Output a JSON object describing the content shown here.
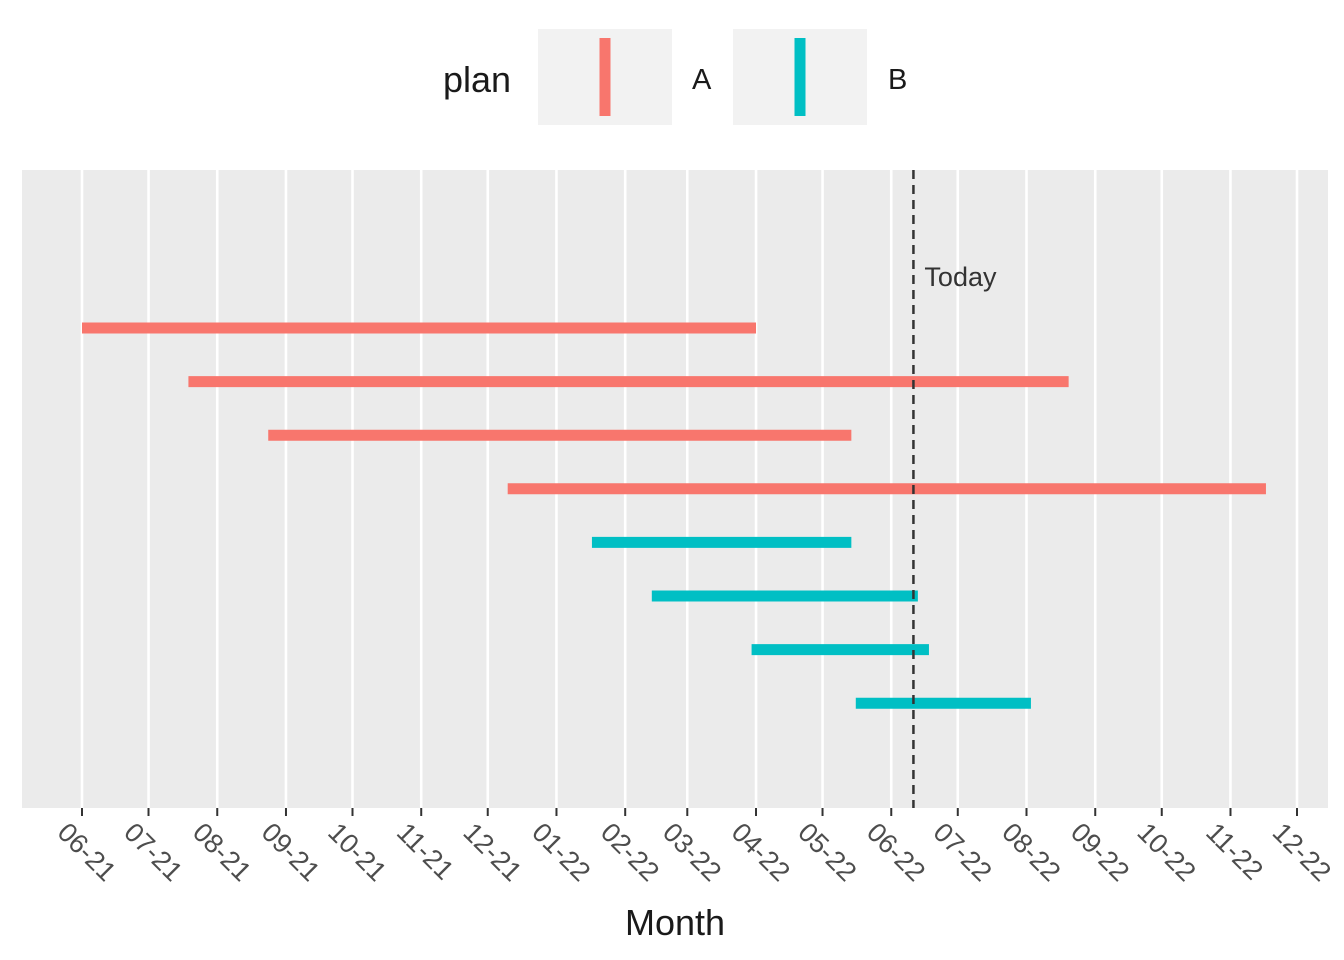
{
  "chart_data": {
    "type": "gantt",
    "xlabel": "Month",
    "x_ticks": [
      "06-21",
      "07-21",
      "08-21",
      "09-21",
      "10-21",
      "11-21",
      "12-21",
      "01-22",
      "02-22",
      "03-22",
      "04-22",
      "05-22",
      "06-22",
      "07-22",
      "08-22",
      "09-22",
      "10-22",
      "11-22",
      "12-22"
    ],
    "x_range": [
      "2021-05-15",
      "2022-12-15"
    ],
    "legend": {
      "title": "plan",
      "position": "top",
      "items": [
        {
          "label": "A",
          "color": "#F8766D"
        },
        {
          "label": "B",
          "color": "#00BFC4"
        }
      ]
    },
    "series": [
      {
        "plan": "A",
        "start": "2021-06-01",
        "end": "2022-04-01"
      },
      {
        "plan": "A",
        "start": "2021-07-19",
        "end": "2022-08-20"
      },
      {
        "plan": "A",
        "start": "2021-08-24",
        "end": "2022-05-14"
      },
      {
        "plan": "A",
        "start": "2021-12-10",
        "end": "2022-11-17"
      },
      {
        "plan": "B",
        "start": "2022-01-17",
        "end": "2022-05-14"
      },
      {
        "plan": "B",
        "start": "2022-02-13",
        "end": "2022-06-13"
      },
      {
        "plan": "B",
        "start": "2022-03-30",
        "end": "2022-06-18"
      },
      {
        "plan": "B",
        "start": "2022-05-16",
        "end": "2022-08-03"
      }
    ],
    "reference_line": {
      "date": "2022-06-11",
      "label": "Today",
      "style": "dashed"
    },
    "grid": true
  }
}
